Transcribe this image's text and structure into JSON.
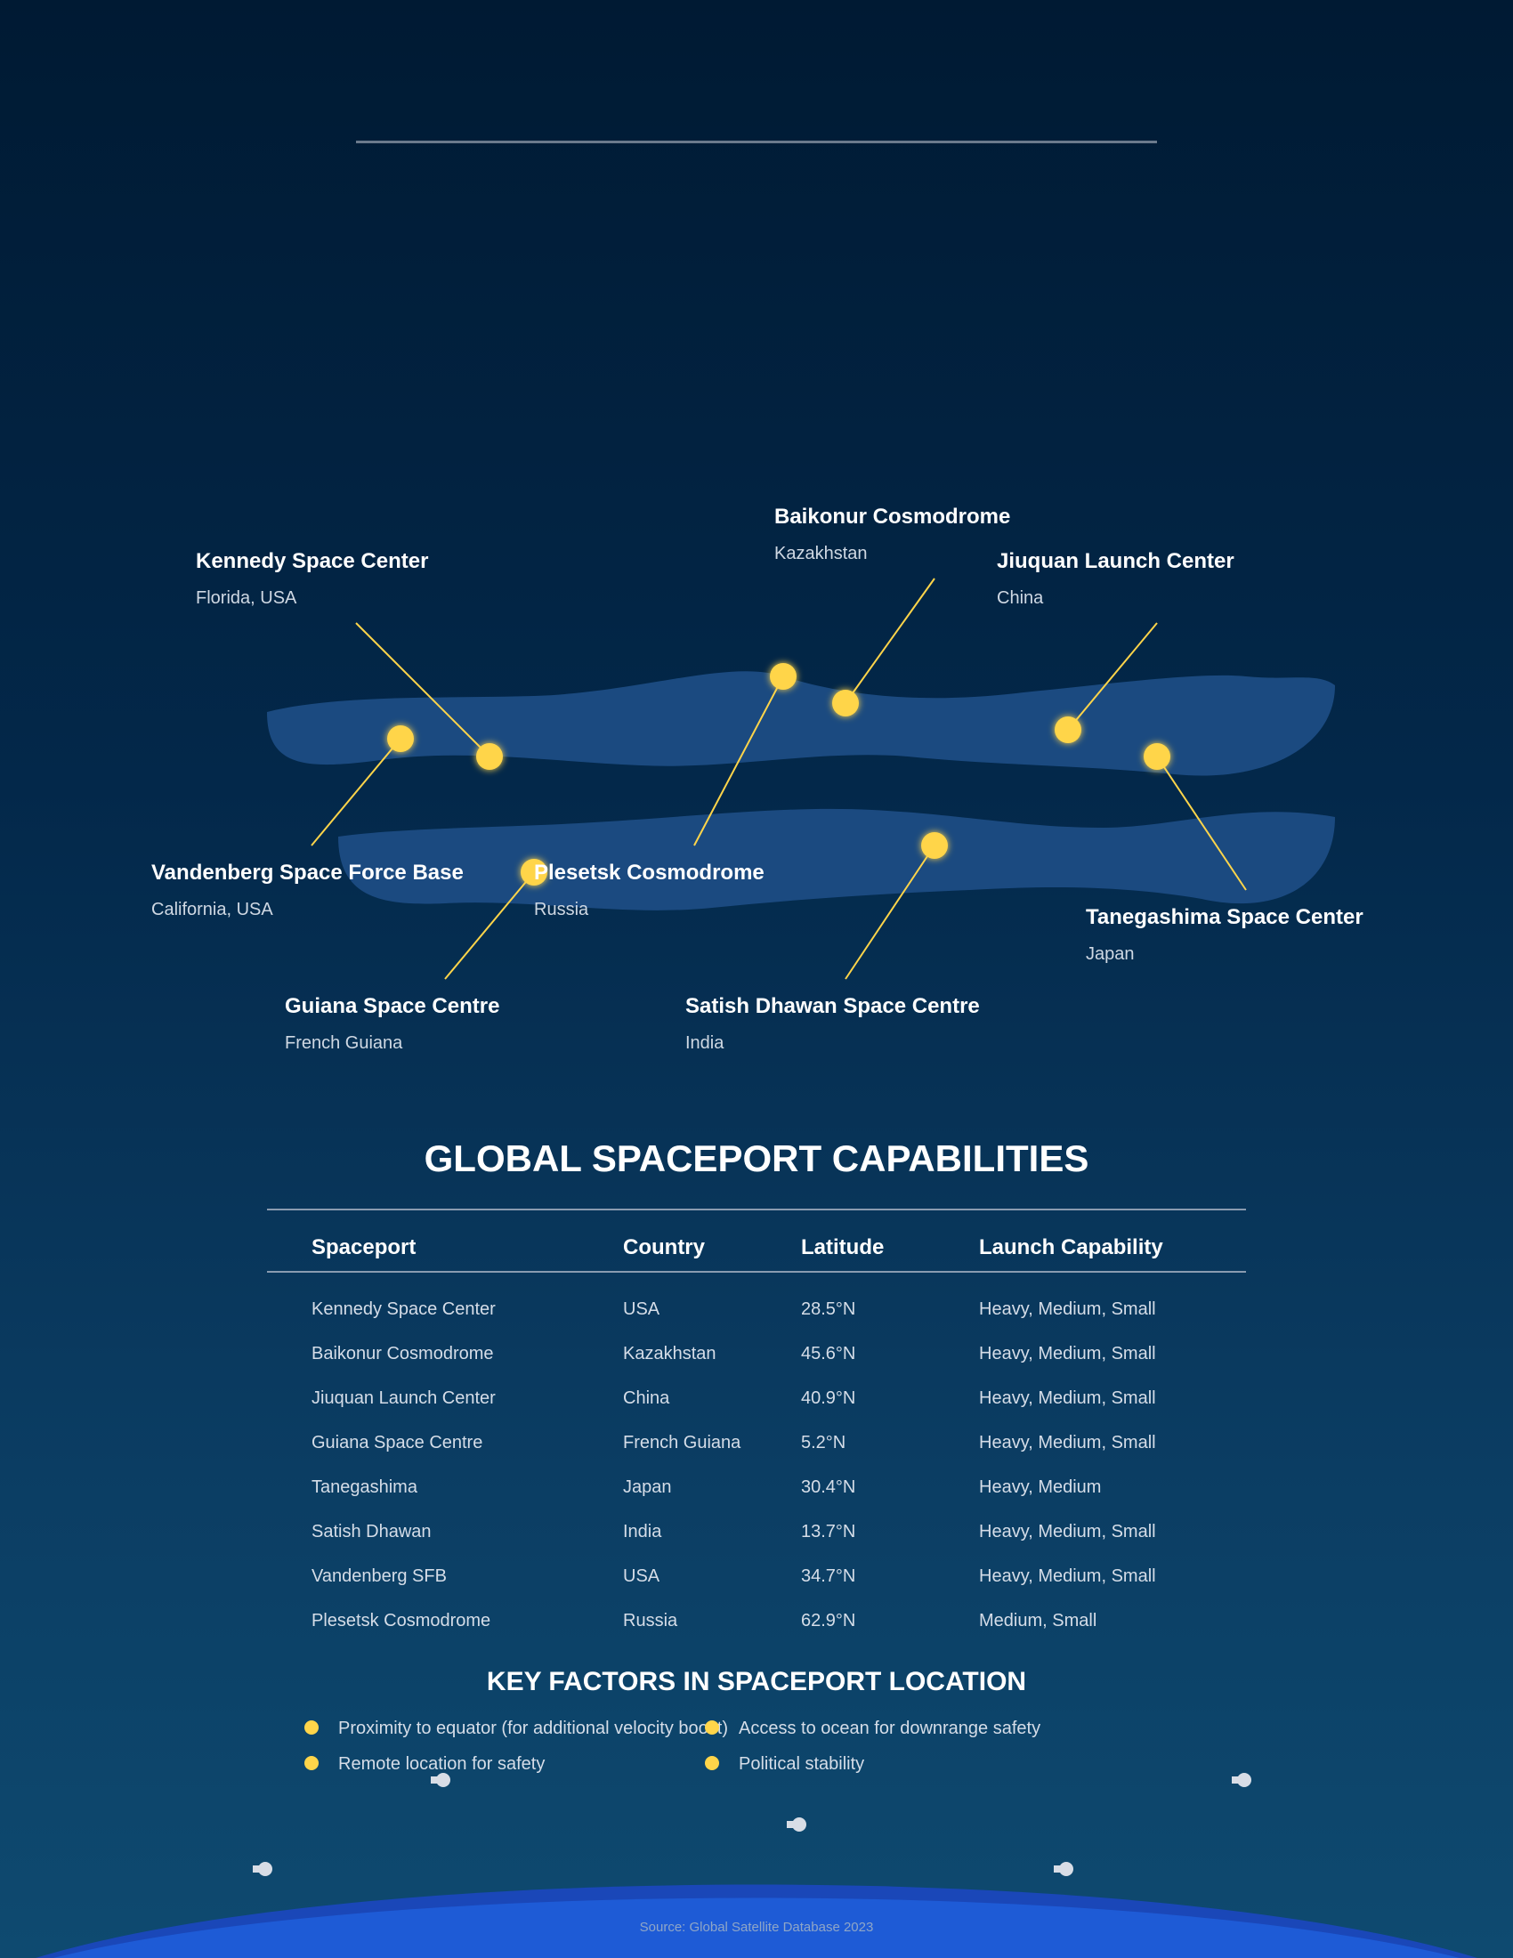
{
  "map": {
    "sites": [
      {
        "id": "kennedy",
        "name": "Kennedy Space Center",
        "country": "Florida, USA"
      },
      {
        "id": "baikonur",
        "name": "Baikonur Cosmodrome",
        "country": "Kazakhstan"
      },
      {
        "id": "jiuquan",
        "name": "Jiuquan Launch Center",
        "country": "China"
      },
      {
        "id": "vandenberg",
        "name": "Vandenberg Space Force Base",
        "country": "California, USA"
      },
      {
        "id": "plesetsk",
        "name": "Plesetsk Cosmodrome",
        "country": "Russia"
      },
      {
        "id": "tanegashima",
        "name": "Tanegashima Space Center",
        "country": "Japan"
      },
      {
        "id": "guiana",
        "name": "Guiana Space Centre",
        "country": "French Guiana"
      },
      {
        "id": "satish",
        "name": "Satish Dhawan Space Centre",
        "country": "India"
      }
    ],
    "colors": {
      "landmass": "#1b4a80",
      "marker": "#ffd54a",
      "leader_line": "#ffd54a"
    }
  },
  "capabilities": {
    "title": "GLOBAL SPACEPORT CAPABILITIES",
    "columns": [
      "Spaceport",
      "Country",
      "Latitude",
      "Launch Capability"
    ],
    "rows": [
      [
        "Kennedy Space Center",
        "USA",
        "28.5°N",
        "Heavy, Medium, Small"
      ],
      [
        "Baikonur Cosmodrome",
        "Kazakhstan",
        "45.6°N",
        "Heavy, Medium, Small"
      ],
      [
        "Jiuquan Launch Center",
        "China",
        "40.9°N",
        "Heavy, Medium, Small"
      ],
      [
        "Guiana Space Centre",
        "French Guiana",
        "5.2°N",
        "Heavy, Medium, Small"
      ],
      [
        "Tanegashima",
        "Japan",
        "30.4°N",
        "Heavy, Medium"
      ],
      [
        "Satish Dhawan",
        "India",
        "13.7°N",
        "Heavy, Medium, Small"
      ],
      [
        "Vandenberg SFB",
        "USA",
        "34.7°N",
        "Heavy, Medium, Small"
      ],
      [
        "Plesetsk Cosmodrome",
        "Russia",
        "62.9°N",
        "Medium, Small"
      ]
    ]
  },
  "key_factors": {
    "title": "KEY FACTORS IN SPACEPORT LOCATION",
    "items": [
      "Proximity to equator (for additional velocity boost)",
      "Access to ocean for downrange safety",
      "Remote location for safety",
      "Political stability"
    ]
  },
  "footer": {
    "source": "Source: Global Satellite Database 2023"
  },
  "colors": {
    "background_top": "#001a33",
    "background_bottom": "#0e4a70",
    "earth": "#1e5bd6",
    "accent": "#ffd54a"
  }
}
